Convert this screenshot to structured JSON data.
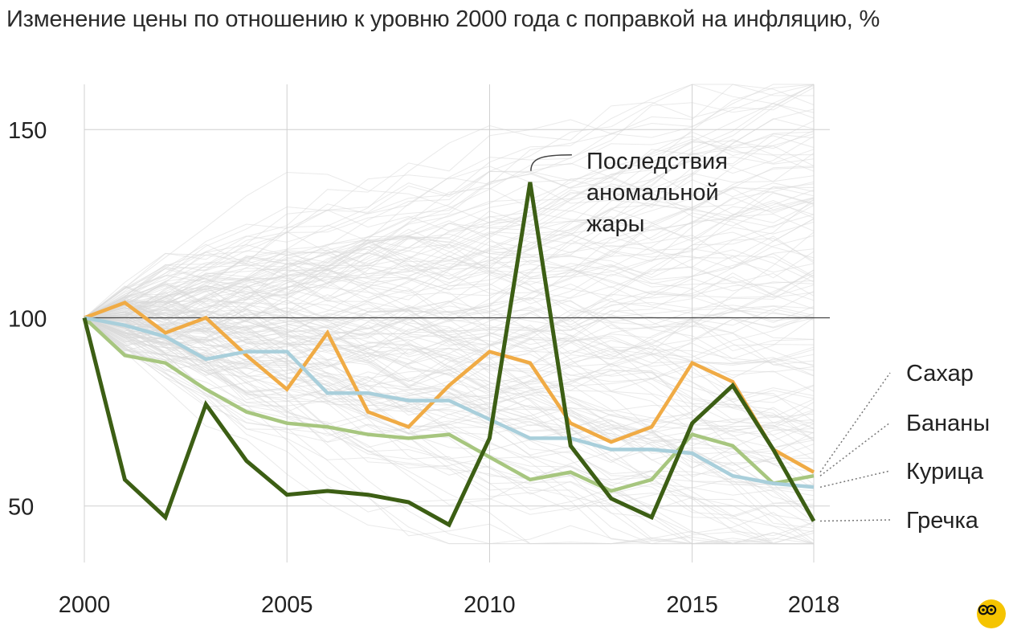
{
  "title": "Изменение цены по отношению к уровню 2000 года с поправкой на инфляцию, %",
  "chart_data": {
    "type": "line",
    "title": "Изменение цены по отношению к уровню 2000 года с поправкой на инфляцию, %",
    "xlabel": "",
    "ylabel": "",
    "xlim": [
      2000,
      2018
    ],
    "ylim": [
      35,
      162
    ],
    "x_ticks": [
      2000,
      2005,
      2010,
      2015,
      2018
    ],
    "y_ticks": [
      50,
      100,
      150
    ],
    "reference_line": 100,
    "grid": true,
    "background_lines": "many thin light-grey lines for other products",
    "x": [
      2000,
      2001,
      2002,
      2003,
      2004,
      2005,
      2006,
      2007,
      2008,
      2009,
      2010,
      2011,
      2012,
      2013,
      2014,
      2015,
      2016,
      2017,
      2018
    ],
    "series": [
      {
        "name": "Сахар",
        "color": "#f0ab45",
        "values": [
          100,
          104,
          96,
          100,
          90,
          81,
          96,
          75,
          71,
          82,
          91,
          88,
          72,
          67,
          71,
          88,
          83,
          65,
          59
        ]
      },
      {
        "name": "Бананы",
        "color": "#a7c67f",
        "values": [
          100,
          90,
          88,
          81,
          75,
          72,
          71,
          69,
          68,
          69,
          63,
          57,
          59,
          54,
          57,
          69,
          66,
          56,
          58
        ]
      },
      {
        "name": "Курица",
        "color": "#a9cfdb",
        "values": [
          100,
          98,
          95,
          89,
          91,
          91,
          80,
          80,
          78,
          78,
          73,
          68,
          68,
          65,
          65,
          64,
          58,
          56,
          55
        ]
      },
      {
        "name": "Гречка",
        "color": "#3c5e14",
        "values": [
          100,
          57,
          47,
          77,
          62,
          53,
          54,
          53,
          51,
          45,
          68,
          136,
          66,
          52,
          47,
          72,
          82,
          65,
          46
        ]
      }
    ],
    "annotation": {
      "text_lines": [
        "Последствия",
        "аномальной",
        "жары"
      ],
      "x": 2011,
      "y": 136
    }
  }
}
